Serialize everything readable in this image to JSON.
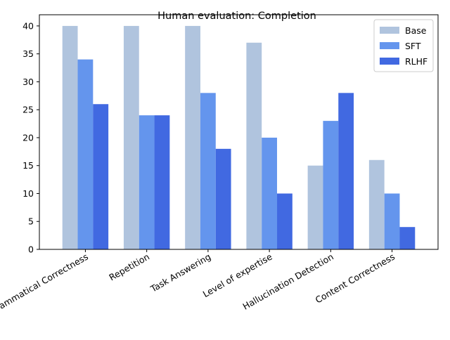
{
  "chart_data": {
    "type": "bar",
    "title": "Human evaluation: Completion",
    "xlabel": "",
    "ylabel": "",
    "categories": [
      "Grammatical Correctness",
      "Repetition",
      "Task Answering",
      "Level of expertise",
      "Hallucination Detection",
      "Content Correctness"
    ],
    "series": [
      {
        "name": "Base",
        "color": "#b0c4de",
        "values": [
          40,
          40,
          40,
          37,
          15,
          16
        ]
      },
      {
        "name": "SFT",
        "color": "#6495ed",
        "values": [
          34,
          24,
          28,
          20,
          23,
          10
        ]
      },
      {
        "name": "RLHF",
        "color": "#4169e1",
        "values": [
          26,
          24,
          18,
          10,
          28,
          4
        ]
      }
    ],
    "ylim": [
      0,
      42
    ],
    "yticks": [
      0,
      5,
      10,
      15,
      20,
      25,
      30,
      35,
      40
    ],
    "grid": false,
    "legend_position": "top-right",
    "x_tick_rotation_deg": 30
  }
}
